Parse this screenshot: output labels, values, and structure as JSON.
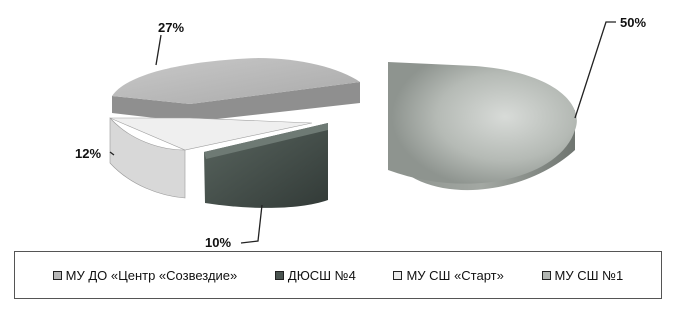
{
  "chart_data": {
    "type": "pie",
    "categories": [
      "МУ ДО «Центр «Созвездие»",
      "ДЮСШ №4",
      "МУ СШ «Старт»",
      "МУ СШ №1"
    ],
    "values": [
      27,
      10,
      12,
      50
    ],
    "labels": [
      "27%",
      "10%",
      "12%",
      "50%"
    ],
    "colors": [
      "#b8b8b8",
      "#4a5450",
      "#ebebeb",
      "#b2b6b2"
    ],
    "legend_position": "bottom"
  }
}
